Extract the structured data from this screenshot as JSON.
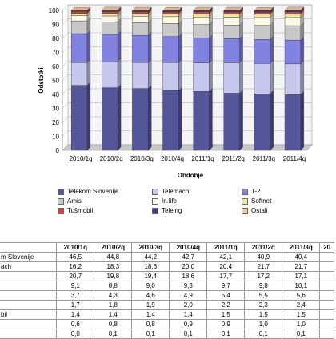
{
  "chart_data": {
    "type": "bar",
    "stacked": true,
    "categories": [
      "2010/1q",
      "2010/2q",
      "2010/3q",
      "2010/4q",
      "2011/1q",
      "2011/2q",
      "2011/3q",
      "2011/4q"
    ],
    "ylabel": "Odstotki",
    "xlabel": "Obdobje",
    "ylim": [
      0,
      100
    ],
    "yticks": [
      0,
      10,
      20,
      30,
      40,
      50,
      60,
      70,
      80,
      90,
      100
    ],
    "grid": true,
    "legend_position": "bottom",
    "series": [
      {
        "name": "Telekom Slovenije",
        "color": "#55559a",
        "values": [
          46.5,
          44.8,
          44.2,
          42.7,
          42.1,
          40.9,
          40.4,
          39.8
        ]
      },
      {
        "name": "Telemach",
        "color": "#c7c7ee",
        "values": [
          16.2,
          18.3,
          18.6,
          20.0,
          20.4,
          21.7,
          21.7,
          22.0
        ]
      },
      {
        "name": "T-2",
        "color": "#8282e0",
        "values": [
          20.7,
          19.8,
          19.4,
          18.6,
          17.7,
          17.2,
          17.1,
          17.0
        ]
      },
      {
        "name": "Amis",
        "color": "#c8c8c8",
        "values": [
          9.1,
          8.8,
          9.0,
          9.3,
          9.7,
          9.8,
          10.1,
          10.3
        ]
      },
      {
        "name": "In.life",
        "color": "#fafae6",
        "values": [
          3.7,
          4.3,
          4.6,
          4.9,
          5.4,
          5.5,
          5.6,
          5.8
        ]
      },
      {
        "name": "Softnet",
        "color": "#f0e6a0",
        "values": [
          1.7,
          1.8,
          1.9,
          2.0,
          2.2,
          2.3,
          2.4,
          2.5
        ]
      },
      {
        "name": "Tušmobil",
        "color": "#d04040",
        "values": [
          1.4,
          1.4,
          1.4,
          1.4,
          1.5,
          1.5,
          1.5,
          1.6
        ]
      },
      {
        "name": "Teleing",
        "color": "#3d3d85",
        "values": [
          0.6,
          0.8,
          0.8,
          0.9,
          0.9,
          1.0,
          1.0,
          1.0
        ]
      },
      {
        "name": "Ostali",
        "color": "#f5c8a0",
        "values": [
          0.0,
          0.1,
          0.1,
          0.1,
          0.1,
          0.1,
          0.1,
          0.1
        ]
      }
    ]
  },
  "table": {
    "headers": [
      "2010/1q",
      "2010/2q",
      "2010/3q",
      "2010/4q",
      "2011/1q",
      "2011/2q",
      "2011/3q",
      "20"
    ],
    "rows": [
      {
        "label": "m Slovenije",
        "cells": [
          "46,5",
          "44,8",
          "44,2",
          "42,7",
          "42,1",
          "40,9",
          "40,4",
          ""
        ]
      },
      {
        "label": "ach",
        "cells": [
          "16,2",
          "18,3",
          "18,6",
          "20,0",
          "20,4",
          "21,7",
          "21,7",
          ""
        ]
      },
      {
        "label": "",
        "cells": [
          "20,7",
          "19,8",
          "19,4",
          "18,6",
          "17,7",
          "17,2",
          "17,1",
          ""
        ]
      },
      {
        "label": "",
        "cells": [
          "9,1",
          "8,8",
          "9,0",
          "9,3",
          "9,7",
          "9,8",
          "10,1",
          ""
        ]
      },
      {
        "label": "",
        "cells": [
          "3,7",
          "4,3",
          "4,6",
          "4,9",
          "5,4",
          "5,5",
          "5,6",
          ""
        ]
      },
      {
        "label": "",
        "cells": [
          "1,7",
          "1,8",
          "1,9",
          "2,0",
          "2,2",
          "2,3",
          "2,4",
          ""
        ]
      },
      {
        "label": "bil",
        "cells": [
          "1,4",
          "1,4",
          "1,4",
          "1,4",
          "1,5",
          "1,5",
          "1,5",
          ""
        ]
      },
      {
        "label": "",
        "cells": [
          "0,6",
          "0,8",
          "0,8",
          "0,9",
          "0,9",
          "1,0",
          "1,0",
          ""
        ]
      },
      {
        "label": "",
        "cells": [
          "0,0",
          "0,1",
          "0,1",
          "0,1",
          "0,1",
          "0,1",
          "0,1",
          ""
        ]
      }
    ]
  }
}
